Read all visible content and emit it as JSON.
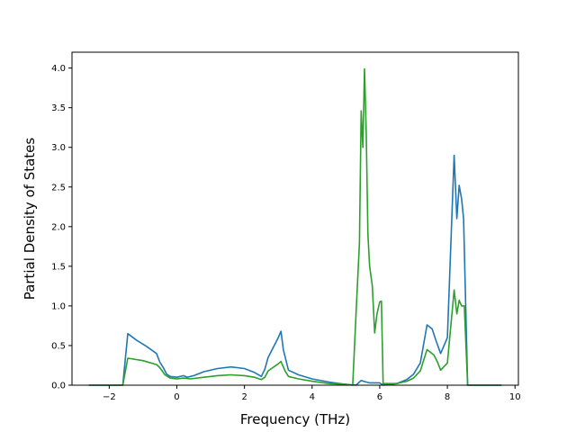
{
  "chart_data": {
    "type": "line",
    "xlabel": "Frequency (THz)",
    "ylabel": "Partial Density of States",
    "xlim": [
      -3.1,
      10.1
    ],
    "ylim": [
      0,
      4.2
    ],
    "xticks": [
      -2,
      0,
      2,
      4,
      6,
      8,
      10
    ],
    "xtick_labels": [
      "−2",
      "0",
      "2",
      "4",
      "6",
      "8",
      "10"
    ],
    "yticks": [
      0.0,
      0.5,
      1.0,
      1.5,
      2.0,
      2.5,
      3.0,
      3.5,
      4.0
    ],
    "ytick_labels": [
      "0.0",
      "0.5",
      "1.0",
      "1.5",
      "2.0",
      "2.5",
      "3.0",
      "3.5",
      "4.0"
    ],
    "grid": false,
    "series": [
      {
        "color": "#1f77b4",
        "points": [
          [
            -2.6,
            0.0
          ],
          [
            -1.6,
            0.0
          ],
          [
            -1.45,
            0.65
          ],
          [
            -1.2,
            0.57
          ],
          [
            -0.9,
            0.49
          ],
          [
            -0.6,
            0.4
          ],
          [
            -0.5,
            0.29
          ],
          [
            -0.4,
            0.22
          ],
          [
            -0.3,
            0.14
          ],
          [
            -0.2,
            0.11
          ],
          [
            0.0,
            0.1
          ],
          [
            0.2,
            0.12
          ],
          [
            0.3,
            0.1
          ],
          [
            0.5,
            0.12
          ],
          [
            0.8,
            0.17
          ],
          [
            1.2,
            0.21
          ],
          [
            1.6,
            0.23
          ],
          [
            2.0,
            0.21
          ],
          [
            2.3,
            0.16
          ],
          [
            2.5,
            0.11
          ],
          [
            2.6,
            0.2
          ],
          [
            2.7,
            0.35
          ],
          [
            3.0,
            0.6
          ],
          [
            3.08,
            0.68
          ],
          [
            3.15,
            0.45
          ],
          [
            3.3,
            0.19
          ],
          [
            3.6,
            0.13
          ],
          [
            4.0,
            0.08
          ],
          [
            4.5,
            0.04
          ],
          [
            5.0,
            0.01
          ],
          [
            5.3,
            0.0
          ],
          [
            5.45,
            0.06
          ],
          [
            5.6,
            0.04
          ],
          [
            5.7,
            0.03
          ],
          [
            6.0,
            0.03
          ],
          [
            6.1,
            0.0
          ],
          [
            6.5,
            0.02
          ],
          [
            6.8,
            0.07
          ],
          [
            7.0,
            0.14
          ],
          [
            7.2,
            0.28
          ],
          [
            7.4,
            0.76
          ],
          [
            7.55,
            0.71
          ],
          [
            7.65,
            0.58
          ],
          [
            7.8,
            0.4
          ],
          [
            8.0,
            0.6
          ],
          [
            8.2,
            2.9
          ],
          [
            8.28,
            2.1
          ],
          [
            8.35,
            2.52
          ],
          [
            8.42,
            2.35
          ],
          [
            8.48,
            2.1
          ],
          [
            8.6,
            0.0
          ],
          [
            9.6,
            0.0
          ]
        ]
      },
      {
        "color": "#2ca02c",
        "points": [
          [
            -2.6,
            0.0
          ],
          [
            -1.6,
            0.0
          ],
          [
            -1.45,
            0.34
          ],
          [
            -1.0,
            0.31
          ],
          [
            -0.6,
            0.26
          ],
          [
            -0.5,
            0.22
          ],
          [
            -0.35,
            0.13
          ],
          [
            -0.2,
            0.09
          ],
          [
            0.0,
            0.08
          ],
          [
            0.2,
            0.09
          ],
          [
            0.4,
            0.08
          ],
          [
            0.8,
            0.1
          ],
          [
            1.2,
            0.12
          ],
          [
            1.6,
            0.13
          ],
          [
            2.0,
            0.12
          ],
          [
            2.3,
            0.1
          ],
          [
            2.5,
            0.07
          ],
          [
            2.6,
            0.1
          ],
          [
            2.7,
            0.18
          ],
          [
            3.0,
            0.27
          ],
          [
            3.08,
            0.3
          ],
          [
            3.2,
            0.18
          ],
          [
            3.3,
            0.11
          ],
          [
            3.6,
            0.08
          ],
          [
            4.0,
            0.05
          ],
          [
            4.5,
            0.02
          ],
          [
            5.0,
            0.01
          ],
          [
            5.2,
            0.0
          ],
          [
            5.3,
            0.9
          ],
          [
            5.4,
            1.8
          ],
          [
            5.45,
            3.46
          ],
          [
            5.5,
            3.0
          ],
          [
            5.55,
            3.99
          ],
          [
            5.6,
            3.2
          ],
          [
            5.65,
            1.9
          ],
          [
            5.7,
            1.5
          ],
          [
            5.78,
            1.25
          ],
          [
            5.85,
            0.66
          ],
          [
            5.92,
            0.9
          ],
          [
            6.0,
            1.05
          ],
          [
            6.05,
            1.06
          ],
          [
            6.1,
            0.02
          ],
          [
            6.5,
            0.02
          ],
          [
            6.8,
            0.05
          ],
          [
            7.0,
            0.09
          ],
          [
            7.2,
            0.18
          ],
          [
            7.4,
            0.45
          ],
          [
            7.6,
            0.38
          ],
          [
            7.7,
            0.3
          ],
          [
            7.8,
            0.19
          ],
          [
            8.0,
            0.28
          ],
          [
            8.2,
            1.2
          ],
          [
            8.28,
            0.9
          ],
          [
            8.35,
            1.07
          ],
          [
            8.42,
            1.0
          ],
          [
            8.5,
            1.0
          ],
          [
            8.6,
            0.0
          ],
          [
            9.6,
            0.0
          ]
        ]
      }
    ]
  }
}
